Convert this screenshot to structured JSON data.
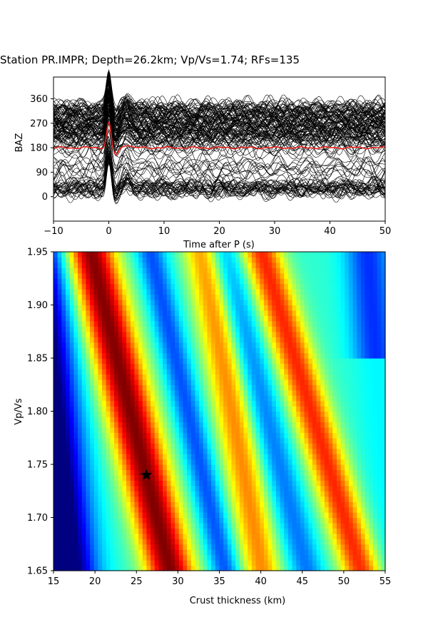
{
  "figure_title": "Station PR.IMPR; Depth=26.2km; Vp/Vs=1.74; RFs=135",
  "chart_data": [
    {
      "type": "line",
      "xlabel": "Time after P (s)",
      "ylabel": "BAZ",
      "xlim": [
        -10,
        50
      ],
      "ylim": [
        -90,
        440
      ],
      "xticks": [
        -10,
        0,
        10,
        20,
        30,
        40,
        50
      ],
      "yticks": [
        0,
        90,
        180,
        270,
        360
      ],
      "grid": false,
      "trace_color": "#000000",
      "stack_color": "#e8201a",
      "trace_groups": [
        {
          "baz_min": 170,
          "baz_max": 345,
          "count": 95
        },
        {
          "baz_min": 80,
          "baz_max": 170,
          "count": 12
        },
        {
          "baz_min": 15,
          "baz_max": 60,
          "count": 28
        }
      ],
      "stack_baseline_baz": 180,
      "stack_peak_time": 0,
      "stack_peak_baz": 272
    },
    {
      "type": "heatmap",
      "xlabel": "Crust thickness (km)",
      "ylabel": "Vp/Vs",
      "xlim": [
        15,
        55
      ],
      "ylim": [
        1.65,
        1.95
      ],
      "xticks": [
        15,
        20,
        25,
        30,
        35,
        40,
        45,
        50,
        55
      ],
      "yticks": [
        1.65,
        1.7,
        1.75,
        1.8,
        1.85,
        1.9,
        1.95
      ],
      "colormap": "jet",
      "best_fit": {
        "depth": 26.2,
        "vpvs": 1.74,
        "marker": "star"
      }
    }
  ]
}
